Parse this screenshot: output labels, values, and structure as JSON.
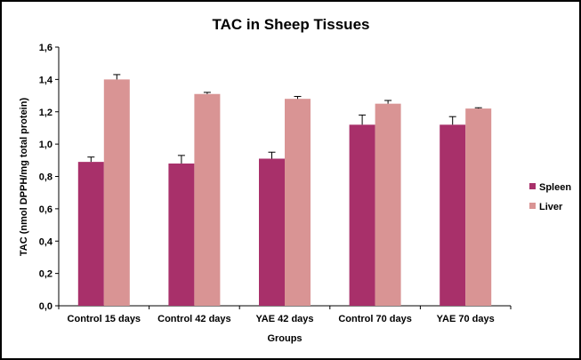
{
  "chart_data": {
    "type": "bar",
    "title": "TAC in Sheep Tissues",
    "xlabel": "Groups",
    "ylabel": "TAC (nmol DPPH/mg total protein)",
    "ylim": [
      0,
      1.6
    ],
    "yticks": [
      "0,0",
      "0,2",
      "0,4",
      "0,6",
      "0,8",
      "1,0",
      "1,2",
      "1,4",
      "1,6"
    ],
    "categories": [
      "Control 15 days",
      "Control 42 days",
      "YAE 42 days",
      "Control 70 days",
      "YAE 70 days"
    ],
    "series": [
      {
        "name": "Spleen",
        "color": "#a8306a",
        "values": [
          0.89,
          0.88,
          0.91,
          1.12,
          1.12
        ],
        "errors": [
          0.03,
          0.05,
          0.04,
          0.06,
          0.05
        ]
      },
      {
        "name": "Liver",
        "color": "#d99494",
        "values": [
          1.4,
          1.31,
          1.28,
          1.25,
          1.22
        ],
        "errors": [
          0.03,
          0.01,
          0.015,
          0.02,
          0.005
        ]
      }
    ],
    "legend_position": "right",
    "grid": false
  }
}
